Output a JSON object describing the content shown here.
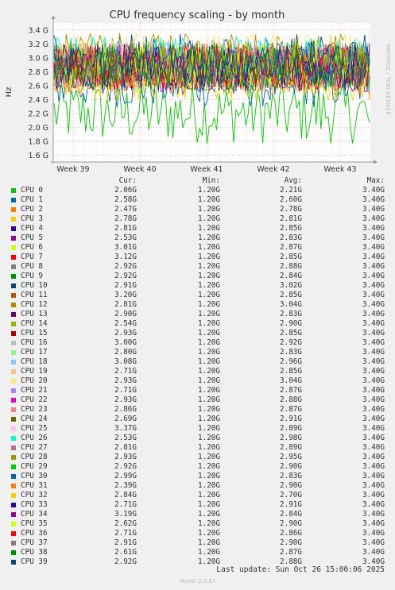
{
  "chart_data": {
    "type": "line",
    "title": "CPU frequency scaling - by month",
    "ylabel": "Hz",
    "side_label": "RRDTOOL / TOBI OETIKER",
    "ylim": [
      1.5,
      3.5
    ],
    "y_ticks": [
      "1.6 G",
      "1.8 G",
      "2.0 G",
      "2.2 G",
      "2.4 G",
      "2.6 G",
      "2.8 G",
      "3.0 G",
      "3.2 G",
      "3.4 G"
    ],
    "y_tick_values": [
      1.6,
      1.8,
      2.0,
      2.2,
      2.4,
      2.6,
      2.8,
      3.0,
      3.2,
      3.4
    ],
    "x_ticks": [
      "Week 39",
      "Week 40",
      "Week 41",
      "Week 42",
      "Week 43"
    ],
    "grid": true,
    "columns": [
      "Cur:",
      "Min:",
      "Avg:",
      "Max:"
    ],
    "series": [
      {
        "name": "CPU 0",
        "color": "#00cc00",
        "cur": "2.06G",
        "min": "1.20G",
        "avg": "2.21G",
        "max": "3.40G"
      },
      {
        "name": "CPU 1",
        "color": "#0066b3",
        "cur": "2.58G",
        "min": "1.20G",
        "avg": "2.60G",
        "max": "3.40G"
      },
      {
        "name": "CPU 2",
        "color": "#ff8000",
        "cur": "2.47G",
        "min": "1.20G",
        "avg": "2.78G",
        "max": "3.40G"
      },
      {
        "name": "CPU 3",
        "color": "#ffcc00",
        "cur": "2.78G",
        "min": "1.20G",
        "avg": "2.81G",
        "max": "3.40G"
      },
      {
        "name": "CPU 4",
        "color": "#330099",
        "cur": "2.81G",
        "min": "1.20G",
        "avg": "2.85G",
        "max": "3.40G"
      },
      {
        "name": "CPU 5",
        "color": "#990099",
        "cur": "2.53G",
        "min": "1.20G",
        "avg": "2.83G",
        "max": "3.40G"
      },
      {
        "name": "CPU 6",
        "color": "#ccff00",
        "cur": "3.01G",
        "min": "1.20G",
        "avg": "2.87G",
        "max": "3.40G"
      },
      {
        "name": "CPU 7",
        "color": "#ff0000",
        "cur": "3.12G",
        "min": "1.20G",
        "avg": "2.85G",
        "max": "3.40G"
      },
      {
        "name": "CPU 8",
        "color": "#808080",
        "cur": "2.92G",
        "min": "1.20G",
        "avg": "2.88G",
        "max": "3.40G"
      },
      {
        "name": "CPU 9",
        "color": "#008f00",
        "cur": "2.92G",
        "min": "1.20G",
        "avg": "2.84G",
        "max": "3.40G"
      },
      {
        "name": "CPU 10",
        "color": "#00487d",
        "cur": "2.91G",
        "min": "1.20G",
        "avg": "3.02G",
        "max": "3.40G"
      },
      {
        "name": "CPU 11",
        "color": "#b35a00",
        "cur": "3.20G",
        "min": "1.20G",
        "avg": "2.85G",
        "max": "3.40G"
      },
      {
        "name": "CPU 12",
        "color": "#b38f00",
        "cur": "2.81G",
        "min": "1.20G",
        "avg": "3.04G",
        "max": "3.40G"
      },
      {
        "name": "CPU 13",
        "color": "#6b006b",
        "cur": "2.90G",
        "min": "1.20G",
        "avg": "2.83G",
        "max": "3.40G"
      },
      {
        "name": "CPU 14",
        "color": "#8fb300",
        "cur": "2.54G",
        "min": "1.20G",
        "avg": "2.90G",
        "max": "3.40G"
      },
      {
        "name": "CPU 15",
        "color": "#b30000",
        "cur": "2.93G",
        "min": "1.20G",
        "avg": "2.85G",
        "max": "3.40G"
      },
      {
        "name": "CPU 16",
        "color": "#bebebe",
        "cur": "3.00G",
        "min": "1.20G",
        "avg": "2.92G",
        "max": "3.40G"
      },
      {
        "name": "CPU 17",
        "color": "#80ff80",
        "cur": "2.80G",
        "min": "1.20G",
        "avg": "2.83G",
        "max": "3.40G"
      },
      {
        "name": "CPU 18",
        "color": "#80c9ff",
        "cur": "3.08G",
        "min": "1.20G",
        "avg": "2.96G",
        "max": "3.40G"
      },
      {
        "name": "CPU 19",
        "color": "#ffc080",
        "cur": "2.71G",
        "min": "1.20G",
        "avg": "2.85G",
        "max": "3.40G"
      },
      {
        "name": "CPU 20",
        "color": "#ffe680",
        "cur": "2.93G",
        "min": "1.20G",
        "avg": "3.04G",
        "max": "3.40G"
      },
      {
        "name": "CPU 21",
        "color": "#aa80ff",
        "cur": "2.71G",
        "min": "1.20G",
        "avg": "2.87G",
        "max": "3.40G"
      },
      {
        "name": "CPU 22",
        "color": "#ee00cc",
        "cur": "2.93G",
        "min": "1.20G",
        "avg": "2.88G",
        "max": "3.40G"
      },
      {
        "name": "CPU 23",
        "color": "#ff8080",
        "cur": "2.86G",
        "min": "1.20G",
        "avg": "2.87G",
        "max": "3.40G"
      },
      {
        "name": "CPU 24",
        "color": "#666600",
        "cur": "2.69G",
        "min": "1.20G",
        "avg": "2.91G",
        "max": "3.40G"
      },
      {
        "name": "CPU 25",
        "color": "#ffbfff",
        "cur": "3.37G",
        "min": "1.20G",
        "avg": "2.89G",
        "max": "3.40G"
      },
      {
        "name": "CPU 26",
        "color": "#00ffcc",
        "cur": "2.53G",
        "min": "1.20G",
        "avg": "2.98G",
        "max": "3.40G"
      },
      {
        "name": "CPU 27",
        "color": "#cc6699",
        "cur": "2.81G",
        "min": "1.20G",
        "avg": "2.89G",
        "max": "3.40G"
      },
      {
        "name": "CPU 28",
        "color": "#999900",
        "cur": "2.93G",
        "min": "1.20G",
        "avg": "2.95G",
        "max": "3.40G"
      },
      {
        "name": "CPU 29",
        "color": "#00cc00",
        "cur": "2.92G",
        "min": "1.20G",
        "avg": "2.90G",
        "max": "3.40G"
      },
      {
        "name": "CPU 30",
        "color": "#0066b3",
        "cur": "2.99G",
        "min": "1.20G",
        "avg": "2.83G",
        "max": "3.40G"
      },
      {
        "name": "CPU 31",
        "color": "#ff8000",
        "cur": "2.39G",
        "min": "1.20G",
        "avg": "2.90G",
        "max": "3.40G"
      },
      {
        "name": "CPU 32",
        "color": "#ffcc00",
        "cur": "2.84G",
        "min": "1.20G",
        "avg": "2.70G",
        "max": "3.40G"
      },
      {
        "name": "CPU 33",
        "color": "#330099",
        "cur": "2.71G",
        "min": "1.20G",
        "avg": "2.91G",
        "max": "3.40G"
      },
      {
        "name": "CPU 34",
        "color": "#990099",
        "cur": "3.19G",
        "min": "1.20G",
        "avg": "2.84G",
        "max": "3.40G"
      },
      {
        "name": "CPU 35",
        "color": "#ccff00",
        "cur": "2.62G",
        "min": "1.20G",
        "avg": "2.90G",
        "max": "3.40G"
      },
      {
        "name": "CPU 36",
        "color": "#ff0000",
        "cur": "2.71G",
        "min": "1.20G",
        "avg": "2.86G",
        "max": "3.40G"
      },
      {
        "name": "CPU 37",
        "color": "#808080",
        "cur": "2.91G",
        "min": "1.20G",
        "avg": "2.90G",
        "max": "3.40G"
      },
      {
        "name": "CPU 38",
        "color": "#008f00",
        "cur": "2.61G",
        "min": "1.20G",
        "avg": "2.87G",
        "max": "3.40G"
      },
      {
        "name": "CPU 39",
        "color": "#00487d",
        "cur": "2.92G",
        "min": "1.20G",
        "avg": "2.88G",
        "max": "3.40G"
      }
    ]
  },
  "last_update": "Last update: Sun Oct 26 15:00:06 2025",
  "footer": "Munin 2.0.67"
}
